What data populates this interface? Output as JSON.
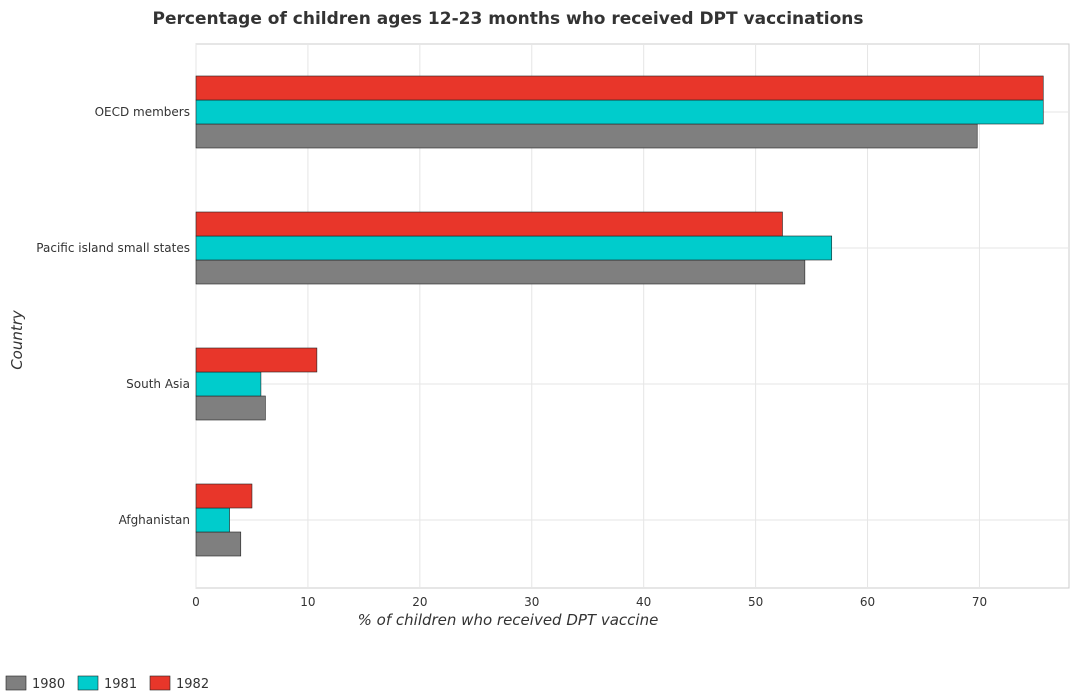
{
  "chart_data": {
    "type": "bar",
    "orientation": "horizontal",
    "title": "Percentage of children ages 12-23 months who received DPT vaccinations",
    "xlabel": "% of children who received DPT vaccine",
    "ylabel": "Country",
    "xlim": [
      0,
      78
    ],
    "xticks": [
      0,
      10,
      20,
      30,
      40,
      50,
      60,
      70
    ],
    "grid": true,
    "legend_position": "bottom-left",
    "categories": [
      "OECD members",
      "Pacific island small states",
      "South Asia",
      "Afghanistan"
    ],
    "series": [
      {
        "name": "1980",
        "color": "#7f7f7f",
        "values": [
          69.8,
          54.4,
          6.2,
          4.0
        ]
      },
      {
        "name": "1981",
        "color": "#00cccc",
        "values": [
          75.7,
          56.8,
          5.8,
          3.0
        ]
      },
      {
        "name": "1982",
        "color": "#e8362a",
        "values": [
          75.7,
          52.4,
          10.8,
          5.0
        ]
      }
    ]
  }
}
